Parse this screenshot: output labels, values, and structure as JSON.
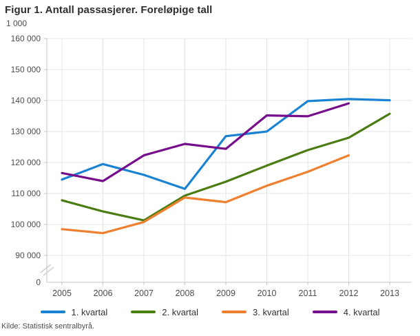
{
  "title": "Figur 1. Antall passasjerer. Foreløpige tall",
  "source": "Kilde: Statistisk sentralbyrå.",
  "chart_data": {
    "type": "line",
    "title": "Figur 1. Antall passasjerer. Foreløpige tall",
    "unit_label": "1 000",
    "categories": [
      "2005",
      "2006",
      "2007",
      "2008",
      "2009",
      "2010",
      "2011",
      "2012",
      "2013"
    ],
    "y_axis": {
      "tick_labels": [
        "160 000",
        "150 000",
        "140 000",
        "130 000",
        "120 000",
        "110 000",
        "100 000",
        "90 000"
      ],
      "tick_values": [
        160000,
        150000,
        140000,
        130000,
        120000,
        110000,
        100000,
        90000
      ],
      "zero_label": "0",
      "axis_break": true,
      "range_shown": [
        90000,
        160000
      ],
      "grid": true
    },
    "legend_position": "bottom",
    "series": [
      {
        "name": "1. kvartal",
        "color": "#1a82d2",
        "values": [
          114500,
          119500,
          116000,
          111500,
          128500,
          130000,
          139800,
          140500,
          140100
        ]
      },
      {
        "name": "2. kvartal",
        "color": "#4a7c12",
        "values": [
          107800,
          104200,
          101300,
          109300,
          113800,
          119000,
          124000,
          128000,
          135700
        ]
      },
      {
        "name": "3. kvartal",
        "color": "#ef8030",
        "values": [
          98500,
          97200,
          100800,
          108700,
          107200,
          112500,
          117000,
          122300,
          null
        ]
      },
      {
        "name": "4. kvartal",
        "color": "#750d8c",
        "values": [
          116600,
          114000,
          122300,
          126000,
          124400,
          135200,
          134900,
          139100,
          null
        ]
      }
    ],
    "style": {
      "grid_color": "#e4e4e4",
      "axis_color": "#c4c4c4",
      "label_color": "#4d4d4d"
    }
  }
}
